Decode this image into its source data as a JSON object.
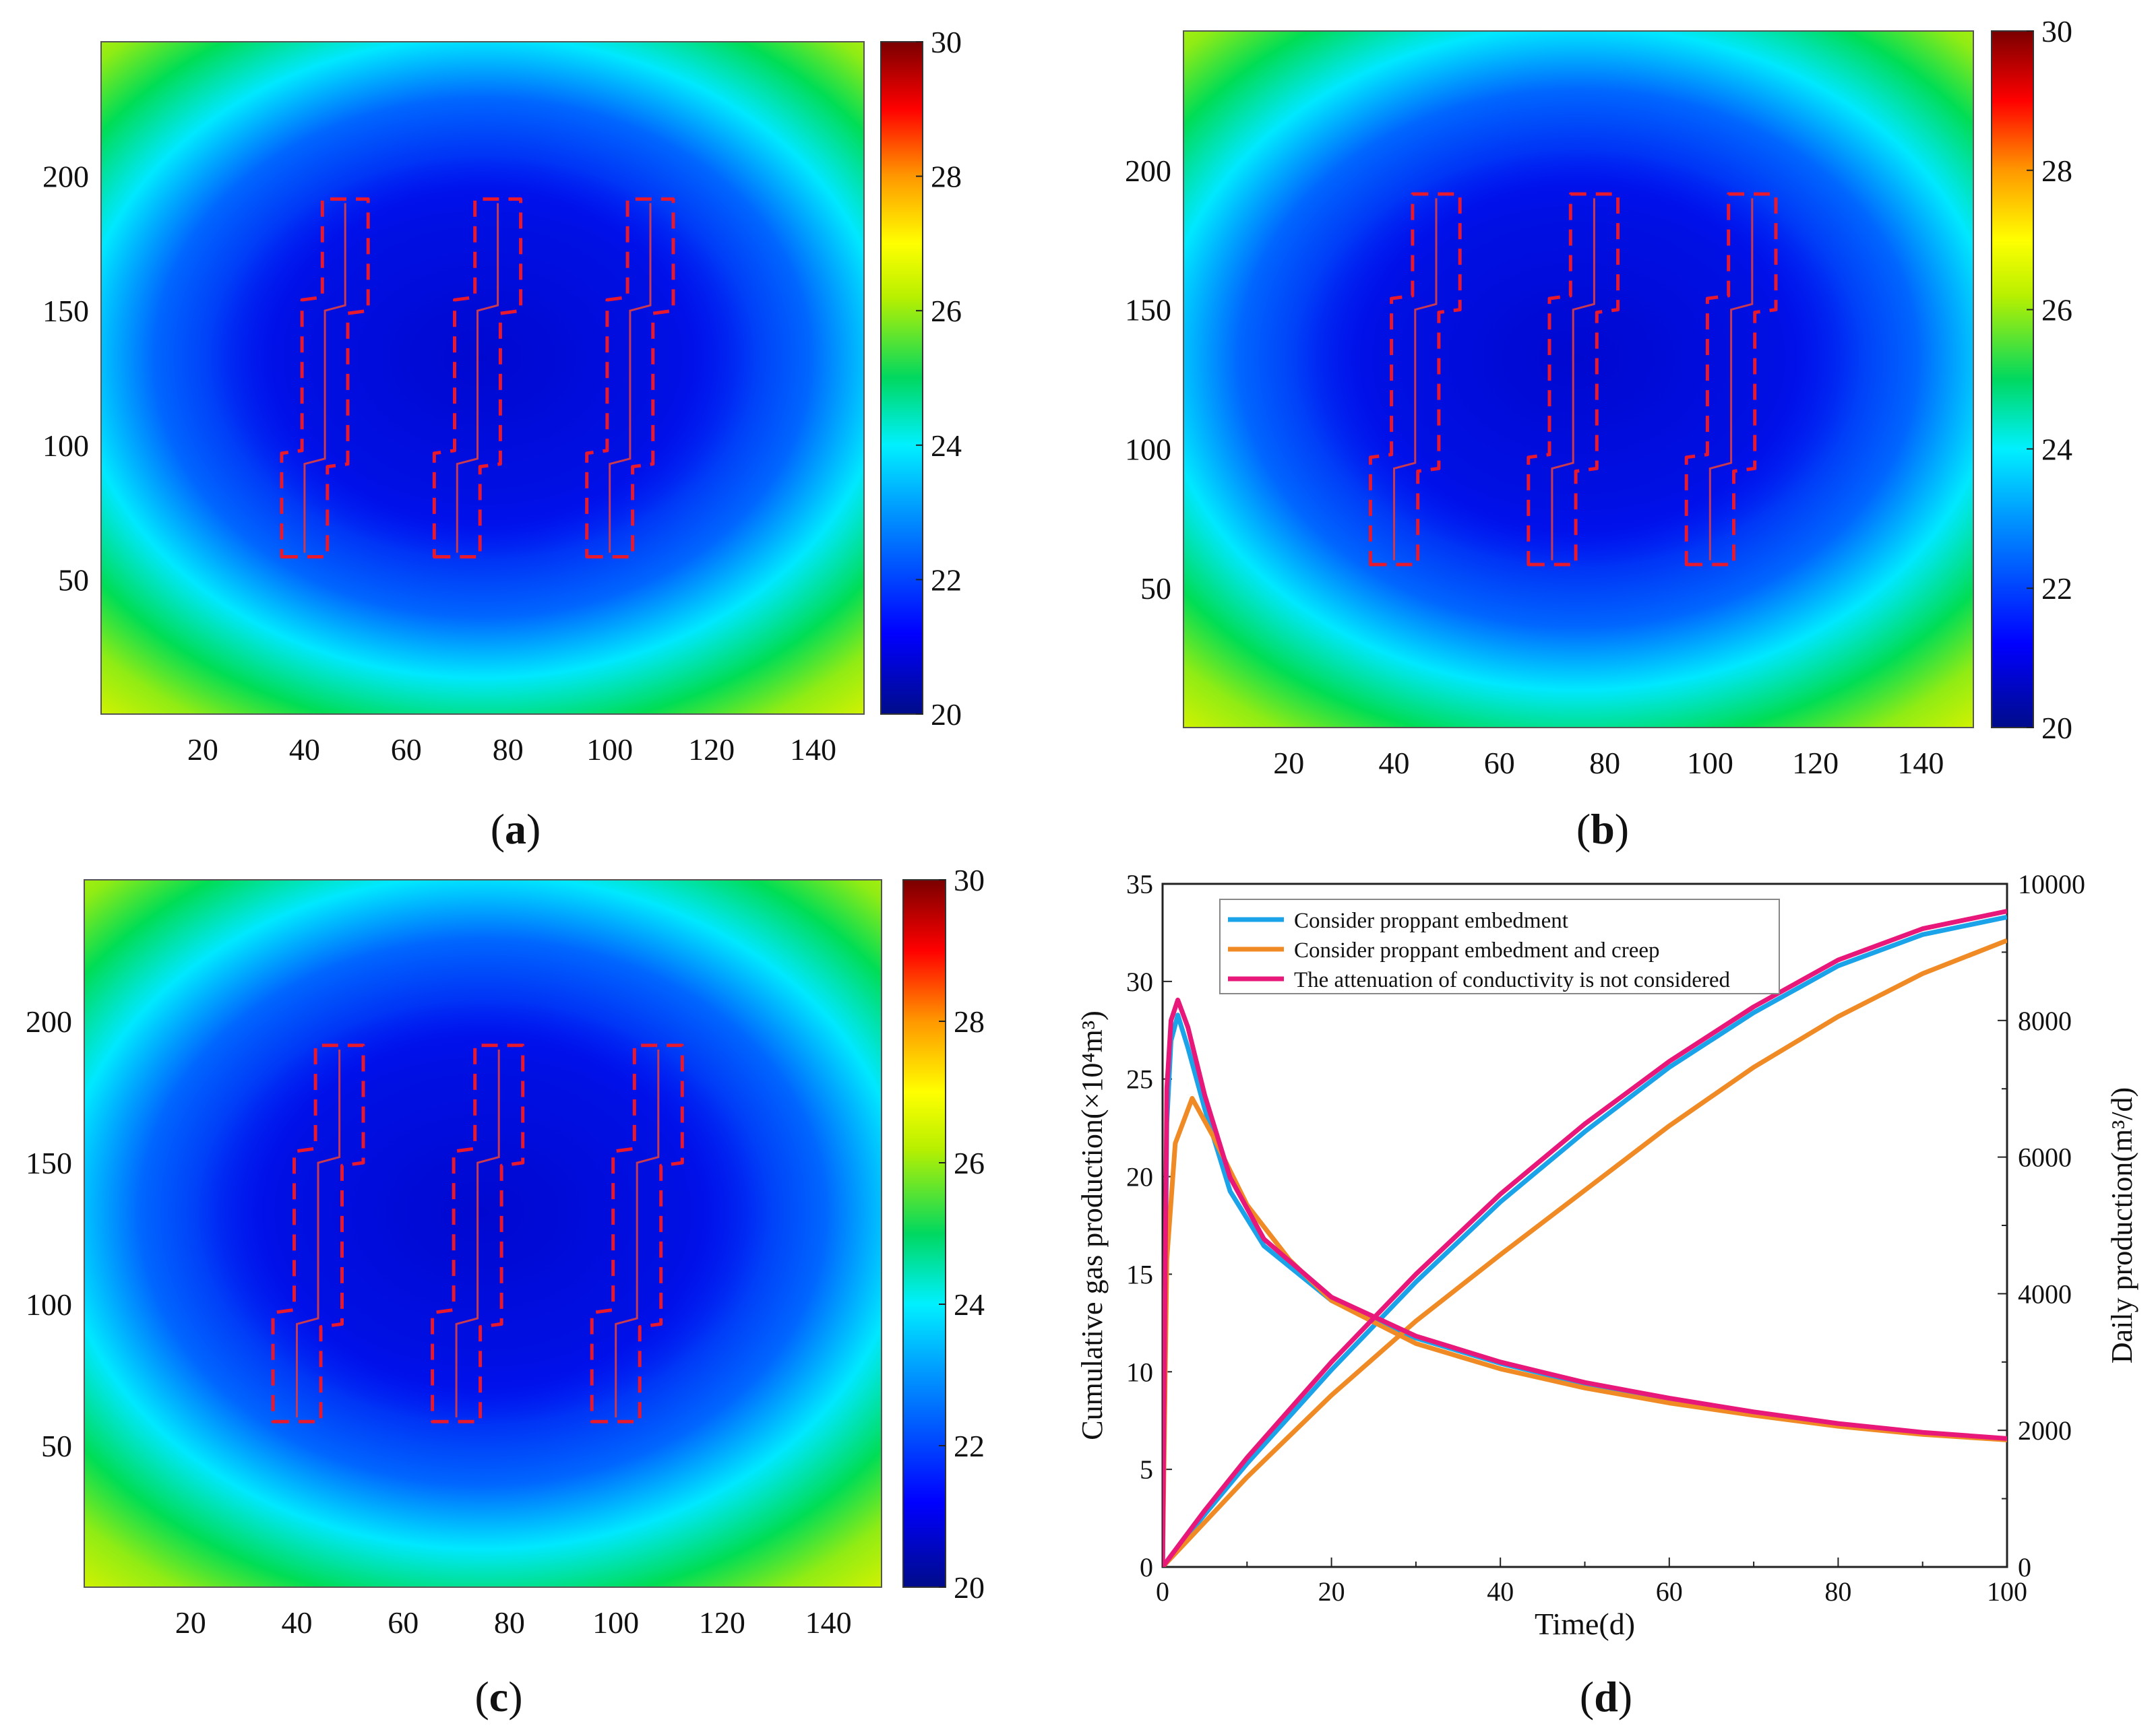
{
  "panels": {
    "a": {
      "label_text": "a",
      "paren_open": "(",
      "paren_close": ")"
    },
    "b": {
      "label_text": "b",
      "paren_open": "(",
      "paren_close": ")"
    },
    "c": {
      "label_text": "c",
      "paren_open": "(",
      "paren_close": ")"
    },
    "d": {
      "label_text": "d",
      "paren_open": "(",
      "paren_close": ")"
    }
  },
  "chart_data": [
    {
      "id": "a",
      "type": "heatmap",
      "title": "",
      "xlabel": "",
      "ylabel": "",
      "xlim": [
        0,
        150
      ],
      "ylim": [
        0,
        250
      ],
      "x_ticks": [
        20,
        40,
        60,
        80,
        100,
        120,
        140
      ],
      "y_ticks": [
        50,
        100,
        150,
        200
      ],
      "colorbar": {
        "min": 20,
        "max": 30,
        "ticks": [
          20,
          22,
          24,
          26,
          28,
          30
        ]
      },
      "fracture_x": [
        40,
        70,
        100
      ],
      "fracture_y_range": [
        60,
        190
      ]
    },
    {
      "id": "b",
      "type": "heatmap",
      "title": "",
      "xlabel": "",
      "ylabel": "",
      "xlim": [
        0,
        150
      ],
      "ylim": [
        0,
        250
      ],
      "x_ticks": [
        20,
        40,
        60,
        80,
        100,
        120,
        140
      ],
      "y_ticks": [
        50,
        100,
        150,
        200
      ],
      "colorbar": {
        "min": 20,
        "max": 30,
        "ticks": [
          20,
          22,
          24,
          26,
          28,
          30
        ]
      },
      "fracture_x": [
        40,
        70,
        100
      ],
      "fracture_y_range": [
        60,
        190
      ]
    },
    {
      "id": "c",
      "type": "heatmap",
      "title": "",
      "xlabel": "",
      "ylabel": "",
      "xlim": [
        0,
        150
      ],
      "ylim": [
        0,
        250
      ],
      "x_ticks": [
        20,
        40,
        60,
        80,
        100,
        120,
        140
      ],
      "y_ticks": [
        50,
        100,
        150,
        200
      ],
      "colorbar": {
        "min": 20,
        "max": 30,
        "ticks": [
          20,
          22,
          24,
          26,
          28,
          30
        ]
      },
      "fracture_x": [
        40,
        70,
        100
      ],
      "fracture_y_range": [
        60,
        190
      ]
    },
    {
      "id": "d",
      "type": "line",
      "title": "",
      "xlabel": "Time(d)",
      "ylabel_left": "Cumulative gas production(×10⁴m³)",
      "ylabel_right": "Daily production(m³/d)",
      "xlim": [
        0,
        100
      ],
      "ylim_left": [
        0,
        35
      ],
      "ylim_right": [
        0,
        10000
      ],
      "x_ticks": [
        0,
        20,
        40,
        60,
        80,
        100
      ],
      "y_ticks_left": [
        0,
        5,
        10,
        15,
        20,
        25,
        30,
        35
      ],
      "y_ticks_right": [
        0,
        2000,
        4000,
        6000,
        8000,
        10000
      ],
      "legend_position": "top-left",
      "series": [
        {
          "name": "Consider proppant embedment",
          "color": "#1aa3e8",
          "cumulative": [
            [
              0,
              0
            ],
            [
              5,
              2.7
            ],
            [
              10,
              5.3
            ],
            [
              20,
              10.1
            ],
            [
              30,
              14.6
            ],
            [
              40,
              18.7
            ],
            [
              50,
              22.3
            ],
            [
              60,
              25.6
            ],
            [
              70,
              28.4
            ],
            [
              80,
              30.8
            ],
            [
              90,
              32.4
            ],
            [
              100,
              33.3
            ]
          ],
          "daily": [
            [
              0,
              0
            ],
            [
              0.5,
              6500
            ],
            [
              1,
              7700
            ],
            [
              1.8,
              8080
            ],
            [
              3,
              7600
            ],
            [
              5,
              6700
            ],
            [
              8,
              5500
            ],
            [
              12,
              4700
            ],
            [
              20,
              3900
            ],
            [
              30,
              3350
            ],
            [
              40,
              2980
            ],
            [
              50,
              2680
            ],
            [
              60,
              2450
            ],
            [
              70,
              2250
            ],
            [
              80,
              2080
            ],
            [
              90,
              1950
            ],
            [
              100,
              1870
            ]
          ]
        },
        {
          "name": "Consider proppant embedment and creep",
          "color": "#f08a24",
          "cumulative": [
            [
              0,
              0
            ],
            [
              5,
              2.3
            ],
            [
              10,
              4.6
            ],
            [
              20,
              8.8
            ],
            [
              30,
              12.6
            ],
            [
              40,
              16.0
            ],
            [
              50,
              19.3
            ],
            [
              60,
              22.6
            ],
            [
              70,
              25.6
            ],
            [
              80,
              28.2
            ],
            [
              90,
              30.4
            ],
            [
              100,
              32.1
            ]
          ],
          "daily": [
            [
              0,
              0
            ],
            [
              0.5,
              4500
            ],
            [
              1.5,
              6200
            ],
            [
              3.5,
              6860
            ],
            [
              6,
              6300
            ],
            [
              10,
              5300
            ],
            [
              15,
              4500
            ],
            [
              20,
              3900
            ],
            [
              30,
              3270
            ],
            [
              40,
              2900
            ],
            [
              50,
              2620
            ],
            [
              60,
              2400
            ],
            [
              70,
              2220
            ],
            [
              80,
              2060
            ],
            [
              90,
              1940
            ],
            [
              100,
              1860
            ]
          ]
        },
        {
          "name": "The attenuation of conductivity is not considered",
          "color": "#e8187a",
          "cumulative": [
            [
              0,
              0
            ],
            [
              5,
              2.9
            ],
            [
              10,
              5.6
            ],
            [
              20,
              10.5
            ],
            [
              30,
              15.0
            ],
            [
              40,
              19.1
            ],
            [
              50,
              22.7
            ],
            [
              60,
              25.9
            ],
            [
              70,
              28.7
            ],
            [
              80,
              31.1
            ],
            [
              90,
              32.7
            ],
            [
              100,
              33.6
            ]
          ],
          "daily": [
            [
              0,
              0
            ],
            [
              0.5,
              7000
            ],
            [
              1,
              8000
            ],
            [
              1.8,
              8300
            ],
            [
              3,
              7900
            ],
            [
              5,
              6900
            ],
            [
              8,
              5700
            ],
            [
              12,
              4800
            ],
            [
              20,
              3950
            ],
            [
              30,
              3380
            ],
            [
              40,
              3000
            ],
            [
              50,
              2700
            ],
            [
              60,
              2470
            ],
            [
              70,
              2270
            ],
            [
              80,
              2100
            ],
            [
              90,
              1970
            ],
            [
              100,
              1880
            ]
          ]
        }
      ]
    }
  ]
}
